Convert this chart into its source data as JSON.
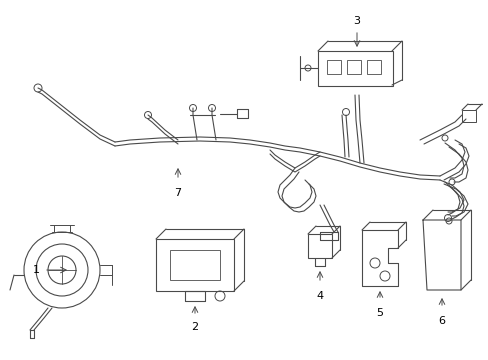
{
  "background_color": "#ffffff",
  "line_color": "#4a4a4a",
  "line_width": 0.8,
  "label_color": "#000000",
  "label_fontsize": 8,
  "fig_width": 4.89,
  "fig_height": 3.6,
  "dpi": 100
}
